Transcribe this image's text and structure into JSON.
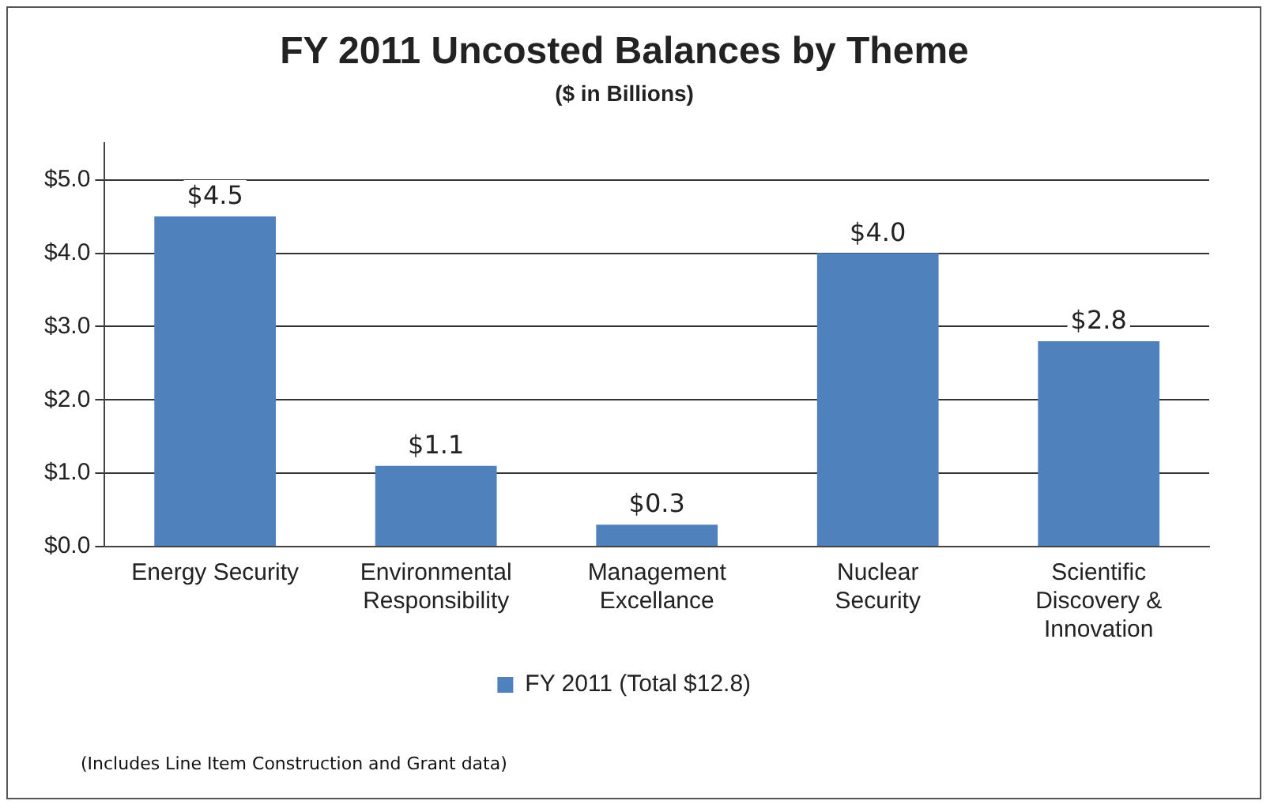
{
  "chart_data": {
    "type": "bar",
    "title": "FY 2011 Uncosted Balances by Theme",
    "subtitle": "($ in Billions)",
    "categories": [
      "Energy Security",
      "Environmental Responsibility",
      "Management Excellance",
      "Nuclear Security",
      "Scientific Discovery & Innovation"
    ],
    "series": [
      {
        "name": "FY 2011 (Total $12.8)",
        "color": "#4f81bd",
        "values": [
          4.5,
          1.1,
          0.3,
          4.0,
          2.8
        ],
        "value_labels": [
          "$4.5",
          "$1.1",
          "$0.3",
          "$4.0",
          "$2.8"
        ]
      }
    ],
    "ylim": [
      0,
      5.5
    ],
    "yticks": [
      {
        "value": 0,
        "label": "$0.0"
      },
      {
        "value": 1,
        "label": "$1.0"
      },
      {
        "value": 2,
        "label": "$2.0"
      },
      {
        "value": 3,
        "label": "$3.0"
      },
      {
        "value": 4,
        "label": "$4.0"
      },
      {
        "value": 5,
        "label": "$5.0"
      }
    ],
    "grid": "y",
    "legend": "bottom",
    "annotations": [
      "(Includes Line Item Construction and Grant data)"
    ]
  }
}
